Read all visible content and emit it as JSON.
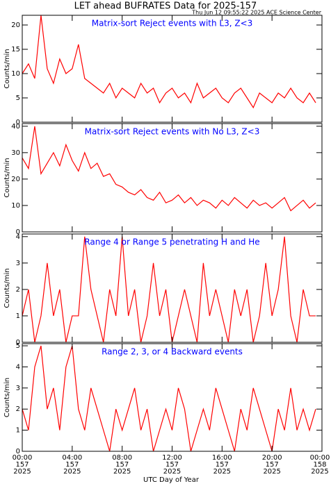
{
  "header": {
    "title": "LET ahead BUFRATES Data for 2025-157",
    "subtitle": "Thu Jun 12 09:55:22 2025 ACE Science Center"
  },
  "x_axis": {
    "label": "UTC Day of Year",
    "xlim": [
      0,
      24
    ],
    "xticks": [
      {
        "value": 0,
        "label": "00:00"
      },
      {
        "value": 4,
        "label": "04:00"
      },
      {
        "value": 8,
        "label": "08:00"
      },
      {
        "value": 12,
        "label": "12:00"
      },
      {
        "value": 16,
        "label": "16:00"
      },
      {
        "value": 20,
        "label": "20:00"
      },
      {
        "value": 24,
        "label": "00:00"
      }
    ],
    "tick_days": [
      "157",
      "157",
      "157",
      "157",
      "157",
      "157",
      "158"
    ],
    "tick_years": [
      "2025",
      "2025",
      "2025",
      "2025",
      "2025",
      "2025",
      "2025"
    ],
    "x": [
      0,
      0.5,
      1,
      1.5,
      2,
      2.5,
      3,
      3.5,
      4,
      4.5,
      5,
      5.5,
      6,
      6.5,
      7,
      7.5,
      8,
      8.5,
      9,
      9.5,
      10,
      10.5,
      11,
      11.5,
      12,
      12.5,
      13,
      13.5,
      14,
      14.5,
      15,
      15.5,
      16,
      16.5,
      17,
      17.5,
      18,
      18.5,
      19,
      19.5,
      20,
      20.5,
      21,
      21.5,
      22,
      22.5,
      23,
      23.5
    ]
  },
  "chart_data": [
    {
      "type": "line",
      "title": "Matrix-sort Reject events with L3, Z<3",
      "ylabel": "Counts/min",
      "ylim": [
        0,
        22
      ],
      "yticks": [
        0,
        5,
        10,
        15,
        20
      ],
      "color": "#ff0000",
      "values": [
        10,
        12,
        9,
        22,
        11,
        8,
        13,
        10,
        11,
        16,
        9,
        8,
        7,
        6,
        8,
        5,
        7,
        6,
        5,
        8,
        6,
        7,
        4,
        6,
        7,
        5,
        6,
        4,
        8,
        5,
        6,
        7,
        5,
        4,
        6,
        7,
        5,
        3,
        6,
        5,
        4,
        6,
        5,
        7,
        5,
        4,
        6,
        4
      ]
    },
    {
      "type": "line",
      "title": "Matrix-sort Reject events with No L3, Z<3",
      "ylabel": "Counts/min",
      "ylim": [
        0,
        41
      ],
      "yticks": [
        0,
        10,
        20,
        30,
        40
      ],
      "color": "#ff0000",
      "values": [
        28,
        24,
        40,
        22,
        26,
        30,
        25,
        33,
        27,
        23,
        30,
        24,
        26,
        21,
        22,
        18,
        17,
        15,
        14,
        16,
        13,
        12,
        15,
        11,
        12,
        14,
        11,
        13,
        10,
        12,
        11,
        9,
        12,
        10,
        13,
        11,
        9,
        12,
        10,
        11,
        9,
        11,
        13,
        8,
        10,
        12,
        9,
        11
      ]
    },
    {
      "type": "line",
      "title": "Range 4 or Range 5 penetrating H and He",
      "ylabel": "Counts/min",
      "ylim": [
        0,
        4.1
      ],
      "yticks": [
        0,
        1,
        2,
        3,
        4
      ],
      "color": "#ff0000",
      "values": [
        1,
        2,
        0,
        1,
        3,
        1,
        2,
        0,
        1,
        1,
        4,
        2,
        1,
        0,
        2,
        1,
        4,
        1,
        2,
        0,
        1,
        3,
        1,
        2,
        0,
        1,
        2,
        1,
        0,
        3,
        1,
        2,
        1,
        0,
        2,
        1,
        2,
        0,
        1,
        3,
        1,
        2,
        4,
        1,
        0,
        2,
        1,
        1
      ]
    },
    {
      "type": "line",
      "title": "Range 2, 3, or 4 Backward events",
      "ylabel": "Counts/min",
      "ylim": [
        0,
        5.1
      ],
      "yticks": [
        0,
        1,
        2,
        3,
        4,
        5
      ],
      "color": "#ff0000",
      "values": [
        2,
        1,
        4,
        5,
        2,
        3,
        1,
        4,
        5,
        2,
        1,
        3,
        2,
        1,
        0,
        2,
        1,
        2,
        3,
        1,
        2,
        0,
        1,
        2,
        1,
        3,
        2,
        0,
        1,
        2,
        1,
        3,
        2,
        1,
        0,
        2,
        1,
        3,
        2,
        1,
        0,
        2,
        1,
        3,
        1,
        2,
        1,
        2
      ]
    }
  ]
}
